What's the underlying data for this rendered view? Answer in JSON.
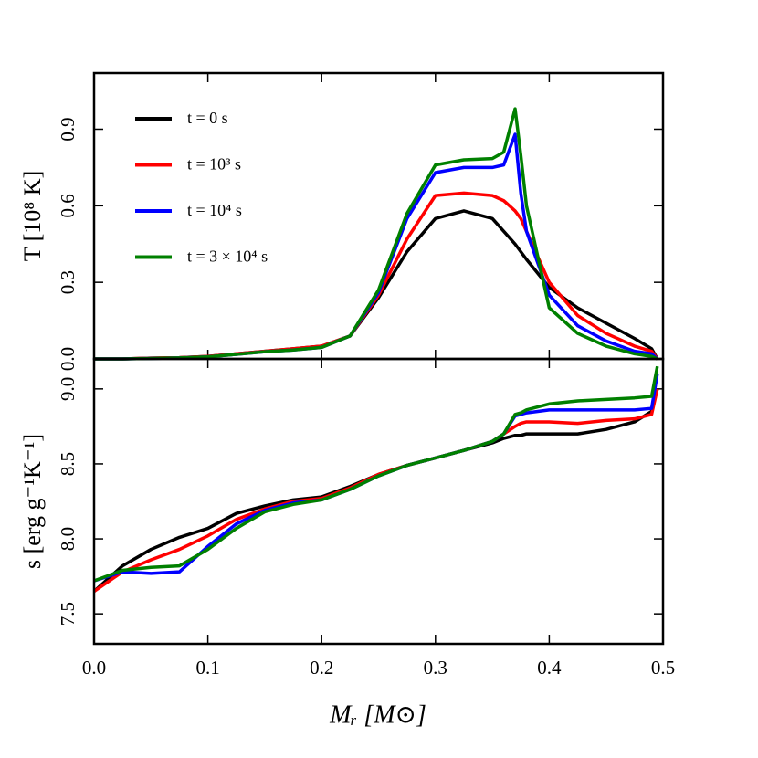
{
  "chart_data": [
    {
      "type": "line",
      "ylabel": "T [10⁸ K]",
      "legend": "upper left",
      "x": [
        0,
        0.025,
        0.05,
        0.075,
        0.1,
        0.125,
        0.15,
        0.175,
        0.2,
        0.225,
        0.25,
        0.275,
        0.3,
        0.325,
        0.35,
        0.36,
        0.37,
        0.375,
        0.38,
        0.4,
        0.425,
        0.45,
        0.475,
        0.49,
        0.495
      ],
      "xlim": [
        0,
        0.5
      ],
      "xticks": [
        0,
        0.1,
        0.2,
        0.3,
        0.4,
        0.5
      ],
      "ylim": [
        0,
        1.12
      ],
      "yticks": [
        {
          "value": 0,
          "label": "0.0"
        },
        0.3,
        0.6,
        0.9
      ],
      "series": [
        {
          "name": "t = 0 s",
          "color": "#000000",
          "values": [
            0,
            0,
            0.003,
            0.005,
            0.01,
            0.02,
            0.03,
            0.04,
            0.05,
            0.09,
            0.24,
            0.42,
            0.55,
            0.58,
            0.55,
            0.5,
            0.45,
            0.42,
            0.39,
            0.28,
            0.2,
            0.14,
            0.08,
            0.04,
            0
          ]
        },
        {
          "name": "t = 10³ s",
          "color": "#ff0000",
          "values": [
            0,
            0,
            0.003,
            0.005,
            0.01,
            0.02,
            0.03,
            0.04,
            0.05,
            0.09,
            0.25,
            0.47,
            0.64,
            0.65,
            0.64,
            0.62,
            0.58,
            0.55,
            0.5,
            0.3,
            0.17,
            0.1,
            0.05,
            0.03,
            0
          ]
        },
        {
          "name": "t = 10⁴ s",
          "color": "#0000ff",
          "values": [
            0,
            0,
            0.002,
            0.004,
            0.008,
            0.018,
            0.028,
            0.035,
            0.045,
            0.09,
            0.26,
            0.55,
            0.73,
            0.75,
            0.75,
            0.76,
            0.88,
            0.65,
            0.5,
            0.25,
            0.13,
            0.07,
            0.03,
            0.02,
            0
          ]
        },
        {
          "name": "t = 3 × 10⁴ s",
          "color": "#008000",
          "values": [
            0,
            0,
            0.002,
            0.004,
            0.008,
            0.018,
            0.028,
            0.035,
            0.045,
            0.09,
            0.27,
            0.57,
            0.76,
            0.78,
            0.785,
            0.81,
            0.98,
            0.8,
            0.6,
            0.2,
            0.1,
            0.05,
            0.02,
            0.01,
            0
          ]
        }
      ]
    },
    {
      "type": "line",
      "ylabel": "s [erg g⁻¹K⁻¹]",
      "xlabel": "Mᵣ [M⊙]",
      "x": [
        0,
        0.025,
        0.05,
        0.075,
        0.1,
        0.125,
        0.15,
        0.175,
        0.2,
        0.225,
        0.25,
        0.275,
        0.3,
        0.325,
        0.35,
        0.36,
        0.37,
        0.375,
        0.38,
        0.4,
        0.425,
        0.45,
        0.475,
        0.49,
        0.495
      ],
      "xlim": [
        0,
        0.5
      ],
      "xticks": [
        {
          "value": 0,
          "label": "0.0"
        },
        0.1,
        0.2,
        0.3,
        0.4,
        0.5
      ],
      "ylim": [
        7.3,
        9.2
      ],
      "yticks": [
        7.5,
        {
          "value": 8,
          "label": "8.0"
        },
        8.5,
        {
          "value": 9,
          "label": "9.0"
        }
      ],
      "series": [
        {
          "name": "t = 0 s",
          "color": "#000000",
          "values": [
            7.65,
            7.82,
            7.93,
            8.01,
            8.07,
            8.17,
            8.22,
            8.26,
            8.28,
            8.35,
            8.43,
            8.49,
            8.54,
            8.59,
            8.64,
            8.67,
            8.69,
            8.69,
            8.7,
            8.7,
            8.7,
            8.73,
            8.78,
            8.85,
            9.0
          ]
        },
        {
          "name": "t = 10³ s",
          "color": "#ff0000",
          "values": [
            7.65,
            7.78,
            7.86,
            7.93,
            8.02,
            8.13,
            8.2,
            8.25,
            8.27,
            8.34,
            8.43,
            8.49,
            8.54,
            8.59,
            8.65,
            8.7,
            8.75,
            8.77,
            8.78,
            8.78,
            8.77,
            8.79,
            8.8,
            8.83,
            9.0
          ]
        },
        {
          "name": "t = 10⁴ s",
          "color": "#0000ff",
          "values": [
            7.72,
            7.78,
            7.77,
            7.78,
            7.95,
            8.1,
            8.19,
            8.24,
            8.26,
            8.33,
            8.42,
            8.49,
            8.54,
            8.59,
            8.65,
            8.7,
            8.82,
            8.83,
            8.84,
            8.86,
            8.86,
            8.86,
            8.86,
            8.87,
            9.1
          ]
        },
        {
          "name": "t = 3 × 10⁴ s",
          "color": "#008000",
          "values": [
            7.72,
            7.79,
            7.81,
            7.82,
            7.93,
            8.07,
            8.18,
            8.23,
            8.26,
            8.33,
            8.42,
            8.49,
            8.54,
            8.59,
            8.65,
            8.7,
            8.83,
            8.84,
            8.86,
            8.9,
            8.92,
            8.93,
            8.94,
            8.95,
            9.15
          ]
        }
      ]
    }
  ]
}
